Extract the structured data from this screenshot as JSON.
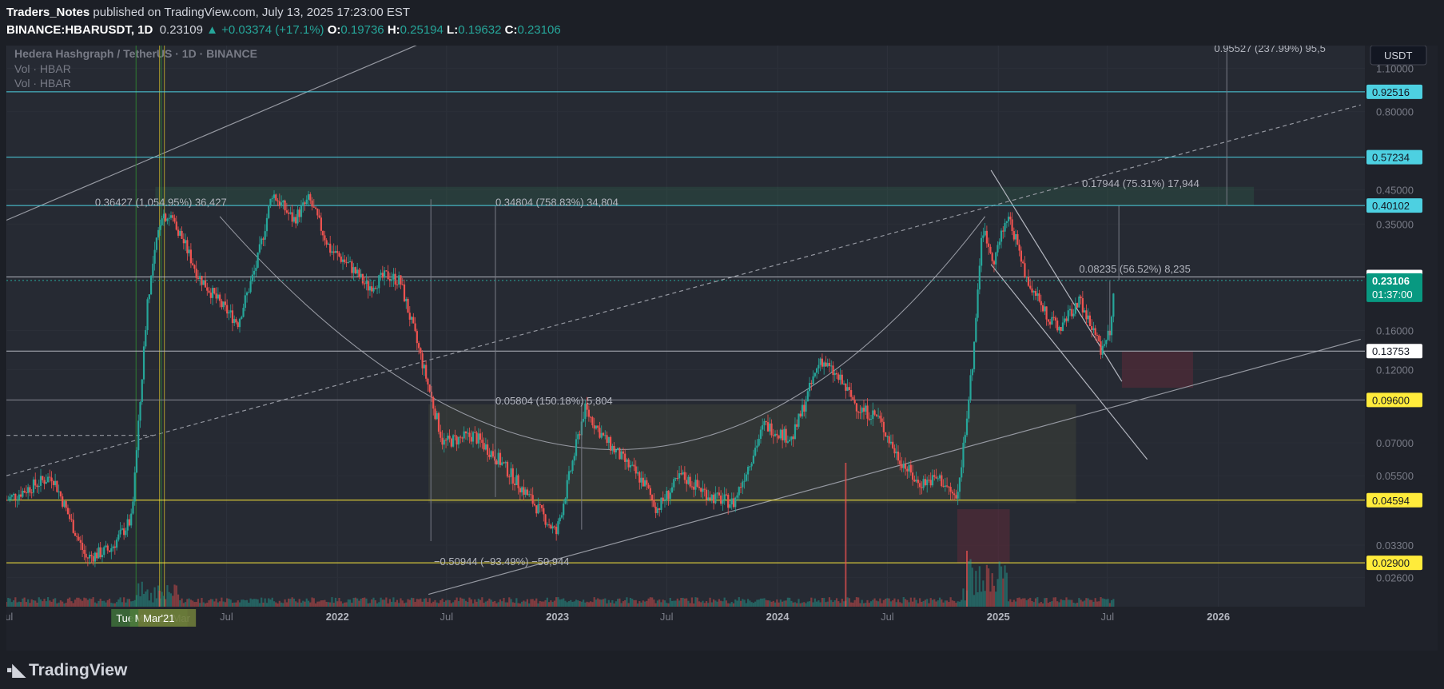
{
  "header": {
    "author": "Traders_Notes",
    "published": "published on TradingView.com, July 13, 2025 17:23:00 EST",
    "symbol": "BINANCE:HBARUSDT, 1D",
    "last": "0.23109",
    "change": "+0.03374 (+17.1%)",
    "o_label": "O:",
    "o": "0.19736",
    "h_label": "H:",
    "h": "0.25194",
    "l_label": "L:",
    "l": "0.19632",
    "c_label": "C:",
    "c": "0.23106"
  },
  "legend": {
    "title": "Hedera Hashgraph / TetherUS · 1D · BINANCE",
    "vol1": "Vol · HBAR",
    "vol2": "Vol · HBAR"
  },
  "currency_button": "USDT",
  "footer": {
    "brand": "TradingView"
  },
  "colors": {
    "up": "#26a69a",
    "down": "#ef5350",
    "cyan": "#4dd0e1",
    "yellow": "#ffeb3b",
    "grid": "#363a45",
    "bg": "#252932"
  },
  "chart_data": {
    "type": "candlestick",
    "scale": "log",
    "ylim": [
      0.021,
      1.3
    ],
    "x_range": [
      "2020-07-01",
      "2026-09-01"
    ],
    "x_ticks": [
      {
        "label": "Jul",
        "date": "2020-07-01"
      },
      {
        "label": "Jul",
        "date": "2021-07-01"
      },
      {
        "label": "2022",
        "date": "2022-01-01"
      },
      {
        "label": "Jul",
        "date": "2022-07-01"
      },
      {
        "label": "2023",
        "date": "2023-01-01"
      },
      {
        "label": "Jul",
        "date": "2023-07-01"
      },
      {
        "label": "2024",
        "date": "2024-01-01"
      },
      {
        "label": "Jul",
        "date": "2024-07-01"
      },
      {
        "label": "2025",
        "date": "2025-01-01"
      },
      {
        "label": "Jul",
        "date": "2025-07-01"
      },
      {
        "label": "2026",
        "date": "2026-01-01"
      }
    ],
    "y_ticks": [
      "1.10000",
      "0.80000",
      "0.45000",
      "0.35000",
      "0.16000",
      "0.12000",
      "0.07000",
      "0.05500",
      "0.04500",
      "0.03300",
      "0.02600"
    ],
    "price_path": [
      {
        "d": "2020-07-01",
        "p": 0.046
      },
      {
        "d": "2020-09-15",
        "p": 0.055
      },
      {
        "d": "2020-11-10",
        "p": 0.03
      },
      {
        "d": "2020-12-20",
        "p": 0.032
      },
      {
        "d": "2021-01-25",
        "p": 0.04
      },
      {
        "d": "2021-02-20",
        "p": 0.2
      },
      {
        "d": "2021-03-15",
        "p": 0.38
      },
      {
        "d": "2021-04-05",
        "p": 0.36
      },
      {
        "d": "2021-05-15",
        "p": 0.24
      },
      {
        "d": "2021-06-25",
        "p": 0.19
      },
      {
        "d": "2021-07-20",
        "p": 0.17
      },
      {
        "d": "2021-08-20",
        "p": 0.26
      },
      {
        "d": "2021-09-15",
        "p": 0.44
      },
      {
        "d": "2021-10-20",
        "p": 0.36
      },
      {
        "d": "2021-11-15",
        "p": 0.42
      },
      {
        "d": "2021-12-20",
        "p": 0.29
      },
      {
        "d": "2022-01-20",
        "p": 0.26
      },
      {
        "d": "2022-02-20",
        "p": 0.22
      },
      {
        "d": "2022-03-25",
        "p": 0.24
      },
      {
        "d": "2022-04-15",
        "p": 0.23
      },
      {
        "d": "2022-05-20",
        "p": 0.13
      },
      {
        "d": "2022-06-25",
        "p": 0.07
      },
      {
        "d": "2022-08-15",
        "p": 0.074
      },
      {
        "d": "2022-09-25",
        "p": 0.062
      },
      {
        "d": "2022-11-15",
        "p": 0.047
      },
      {
        "d": "2022-12-30",
        "p": 0.036
      },
      {
        "d": "2023-02-15",
        "p": 0.09
      },
      {
        "d": "2023-03-20",
        "p": 0.072
      },
      {
        "d": "2023-05-25",
        "p": 0.052
      },
      {
        "d": "2023-06-15",
        "p": 0.043
      },
      {
        "d": "2023-07-25",
        "p": 0.055
      },
      {
        "d": "2023-09-15",
        "p": 0.047
      },
      {
        "d": "2023-10-20",
        "p": 0.045
      },
      {
        "d": "2023-12-10",
        "p": 0.08
      },
      {
        "d": "2024-01-25",
        "p": 0.072
      },
      {
        "d": "2024-03-12",
        "p": 0.13
      },
      {
        "d": "2024-04-15",
        "p": 0.11
      },
      {
        "d": "2024-05-15",
        "p": 0.09
      },
      {
        "d": "2024-06-15",
        "p": 0.085
      },
      {
        "d": "2024-07-15",
        "p": 0.065
      },
      {
        "d": "2024-08-20",
        "p": 0.052
      },
      {
        "d": "2024-09-25",
        "p": 0.054
      },
      {
        "d": "2024-10-25",
        "p": 0.046
      },
      {
        "d": "2024-11-20",
        "p": 0.13
      },
      {
        "d": "2024-12-05",
        "p": 0.34
      },
      {
        "d": "2024-12-25",
        "p": 0.27
      },
      {
        "d": "2025-01-18",
        "p": 0.38
      },
      {
        "d": "2025-02-15",
        "p": 0.24
      },
      {
        "d": "2025-03-15",
        "p": 0.19
      },
      {
        "d": "2025-04-10",
        "p": 0.16
      },
      {
        "d": "2025-05-15",
        "p": 0.2
      },
      {
        "d": "2025-06-20",
        "p": 0.14
      },
      {
        "d": "2025-07-05",
        "p": 0.16
      },
      {
        "d": "2025-07-13",
        "p": 0.231
      }
    ],
    "levels": [
      {
        "value": 0.92516,
        "label": "0.92516",
        "color": "#4dd0e1",
        "tag_bg": "#4dd0e1",
        "tag_fg": "#131722"
      },
      {
        "value": 0.57234,
        "label": "0.57234",
        "color": "#4dd0e1",
        "tag_bg": "#4dd0e1",
        "tag_fg": "#131722"
      },
      {
        "value": 0.40102,
        "label": "0.40102",
        "color": "#4dd0e1",
        "tag_bg": "#4dd0e1",
        "tag_fg": "#131722"
      },
      {
        "value": 0.23713,
        "label": "0.23713",
        "color": "#b2b5be",
        "tag_bg": "#ffffff",
        "tag_fg": "#131722"
      },
      {
        "value": 0.13753,
        "label": "0.13753",
        "color": "#b2b5be",
        "tag_bg": "#ffffff",
        "tag_fg": "#131722"
      },
      {
        "value": 0.096,
        "label": "0.09600",
        "color": "#868993",
        "tag_bg": "#ffeb3b",
        "tag_fg": "#131722"
      },
      {
        "value": 0.04594,
        "label": "0.04594",
        "color": "#ffeb3b",
        "tag_bg": "#ffeb3b",
        "tag_fg": "#131722"
      },
      {
        "value": 0.029,
        "label": "0.02900",
        "color": "#ffeb3b",
        "tag_bg": "#ffeb3b",
        "tag_fg": "#131722"
      }
    ],
    "current_price": {
      "value": 0.23106,
      "label": "0.23106",
      "countdown": "01:37:00"
    },
    "annotations": [
      {
        "text": "0.36427 (1,054.95%) 36,427",
        "date": "2020-11-25",
        "p": 0.4
      },
      {
        "text": "0.34804 (758.83%) 34,804",
        "date": "2022-09-20",
        "p": 0.4
      },
      {
        "text": "0.05804 (150.18%) 5,804",
        "date": "2022-09-20",
        "p": 0.093
      },
      {
        "text": "−0.50944 (−93.49%) −50,944",
        "date": "2022-06-10",
        "p": 0.0285
      },
      {
        "text": "0.17944 (75.31%) 17,944",
        "date": "2025-05-20",
        "p": 0.46
      },
      {
        "text": "0.08235 (56.52%) 8,235",
        "date": "2025-05-15",
        "p": 0.245
      },
      {
        "text": "0.95527 (237.99%) 95,5",
        "date": "2025-12-25",
        "p": 1.24
      }
    ],
    "x_badges": [
      "Tue 05",
      "Mon 15 Mar",
      "Mar'21"
    ]
  }
}
